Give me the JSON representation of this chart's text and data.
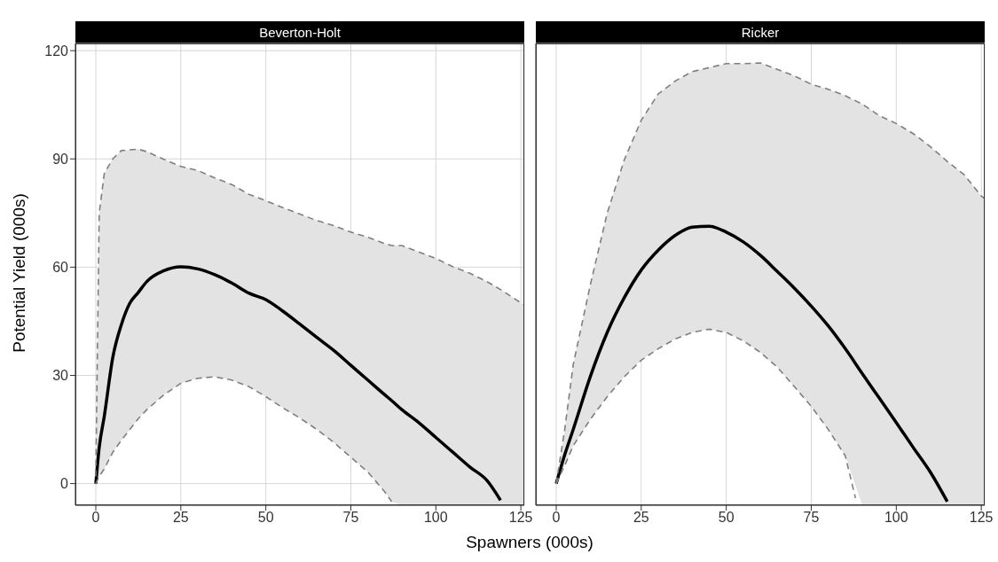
{
  "chart_data": [
    {
      "type": "line",
      "title": "Beverton-Holt",
      "xlabel": "Spawners (000s)",
      "ylabel": "Potential Yield (000s)",
      "xlim": [
        -6,
        126
      ],
      "xticks": [
        0,
        25,
        50,
        75,
        100,
        125
      ],
      "ylim": [
        -6,
        122
      ],
      "yticks": [
        0,
        30,
        60,
        90,
        120
      ],
      "grid": true,
      "legend": false,
      "series": [
        {
          "color": "#000000",
          "x": [
            0,
            1,
            2.5,
            5,
            7.5,
            10,
            12.5,
            15,
            20,
            25,
            30,
            35,
            40,
            45,
            50,
            55,
            60,
            65,
            70,
            75,
            80,
            85,
            87,
            90,
            95,
            100,
            105,
            110,
            115,
            119,
            125,
            126
          ],
          "values": [
            0,
            10,
            18.7,
            35,
            44,
            50,
            53,
            56,
            59,
            60.1,
            59.5,
            57.9,
            55.6,
            52.8,
            51,
            47.8,
            44.2,
            40.5,
            36.9,
            32.8,
            28.7,
            24.6,
            23,
            20.5,
            16.9,
            12.8,
            8.7,
            4.6,
            0.9,
            -4.6,
            null,
            null
          ],
          "upper": [
            2,
            75,
            86,
            90,
            92.3,
            92.5,
            92.7,
            92,
            89.9,
            87.9,
            86.8,
            84.7,
            82.9,
            80.2,
            78.4,
            76.5,
            74.7,
            72.9,
            71.5,
            69.7,
            68.3,
            66.5,
            66,
            66,
            64.2,
            62.4,
            60.1,
            58.3,
            56,
            53.8,
            50.1,
            49.7
          ],
          "lower": [
            0,
            2,
            4.1,
            8.7,
            12,
            15,
            18,
            20.5,
            24.6,
            27.8,
            29.2,
            29.6,
            28.7,
            26.9,
            24.1,
            21,
            18.2,
            15,
            11.4,
            7.3,
            3.2,
            -2.3,
            -5,
            -6,
            -6,
            -6,
            -6,
            -6,
            -6,
            -6,
            -6,
            -6
          ]
        },
        {
          "color": "#7f7f7f",
          "line_style": "dashed",
          "x": [
            0,
            1,
            2.5,
            5,
            7.5,
            10,
            12.5,
            15,
            20,
            25,
            30,
            35,
            40,
            45,
            50,
            55,
            60,
            65,
            70,
            75,
            80,
            85,
            87,
            90,
            95,
            100,
            105,
            110,
            115,
            119,
            125,
            126
          ],
          "values": [
            2,
            75,
            86,
            90,
            92.3,
            92.5,
            92.7,
            92,
            89.9,
            87.9,
            86.8,
            84.7,
            82.9,
            80.2,
            78.4,
            76.5,
            74.7,
            72.9,
            71.5,
            69.7,
            68.3,
            66.5,
            66,
            66,
            64.2,
            62.4,
            60.1,
            58.3,
            56,
            53.8,
            50.1,
            49.7
          ]
        },
        {
          "color": "#7f7f7f",
          "line_style": "dashed",
          "x": [
            0,
            1,
            2.5,
            5,
            7.5,
            10,
            12.5,
            15,
            20,
            25,
            30,
            35,
            40,
            45,
            50,
            55,
            60,
            65,
            70,
            75,
            80,
            85,
            87
          ],
          "values": [
            0,
            2,
            4.1,
            8.7,
            12,
            15,
            18,
            20.5,
            24.6,
            27.8,
            29.2,
            29.6,
            28.7,
            26.9,
            24.1,
            21,
            18.2,
            15,
            11.4,
            7.3,
            3.2,
            -2.3,
            -5
          ]
        }
      ]
    },
    {
      "type": "line",
      "title": "Ricker",
      "xlim": [
        -6,
        126
      ],
      "xticks": [
        0,
        25,
        50,
        75,
        100,
        125
      ],
      "ylim": [
        -6,
        122
      ],
      "yticks": [
        0,
        30,
        60,
        90,
        120
      ],
      "grid": true,
      "legend": false,
      "tick_labels": "x",
      "series": [
        {
          "color": "#000000",
          "x": [
            0,
            2.5,
            5,
            10,
            15,
            20,
            25,
            30,
            35,
            40,
            45,
            50,
            55,
            60,
            65,
            70,
            75,
            80,
            85,
            90,
            95,
            100,
            105,
            110,
            115,
            120,
            125,
            126
          ],
          "values": [
            0,
            8,
            15,
            29.6,
            41.9,
            51.5,
            59.2,
            64.7,
            68.8,
            71.1,
            71.3,
            69.7,
            67,
            63.3,
            58.8,
            54.2,
            49.2,
            43.7,
            37.4,
            30.5,
            23.7,
            16.9,
            10,
            3.2,
            -5,
            null,
            null,
            null
          ],
          "upper": [
            0,
            15,
            33,
            55,
            75,
            89.7,
            100.7,
            108,
            111.6,
            114.2,
            115.3,
            116.4,
            116.4,
            116.6,
            114.8,
            113,
            110.7,
            109.3,
            107.5,
            105.2,
            102,
            99.8,
            97,
            93.4,
            89.3,
            85.6,
            79.7,
            79
          ],
          "lower": [
            0,
            5,
            10.5,
            17.8,
            24.1,
            29.6,
            34.2,
            37.4,
            40.1,
            41.9,
            42.8,
            41.9,
            39.6,
            36.4,
            32.3,
            26.9,
            21.4,
            15,
            7.7,
            -6,
            -6,
            -6,
            -6,
            -6,
            -6,
            -6,
            -6,
            -6
          ]
        },
        {
          "color": "#7f7f7f",
          "line_style": "dashed",
          "x": [
            0,
            2.5,
            5,
            10,
            15,
            20,
            25,
            30,
            35,
            40,
            45,
            50,
            55,
            60,
            65,
            70,
            75,
            80,
            85,
            90,
            95,
            100,
            105,
            110,
            115,
            120,
            125,
            126
          ],
          "values": [
            0,
            15,
            33,
            55,
            75,
            89.7,
            100.7,
            108,
            111.6,
            114.2,
            115.3,
            116.4,
            116.4,
            116.6,
            114.8,
            113,
            110.7,
            109.3,
            107.5,
            105.2,
            102,
            99.8,
            97,
            93.4,
            89.3,
            85.6,
            79.7,
            79
          ]
        },
        {
          "color": "#7f7f7f",
          "line_style": "dashed",
          "x": [
            0,
            2.5,
            5,
            10,
            15,
            20,
            25,
            30,
            35,
            40,
            45,
            50,
            55,
            60,
            65,
            70,
            75,
            80,
            85,
            88
          ],
          "values": [
            0,
            5,
            10.5,
            17.8,
            24.1,
            29.6,
            34.2,
            37.4,
            40.1,
            41.9,
            42.8,
            41.9,
            39.6,
            36.4,
            32.3,
            26.9,
            21.4,
            15,
            7.7,
            -4
          ]
        }
      ]
    }
  ]
}
